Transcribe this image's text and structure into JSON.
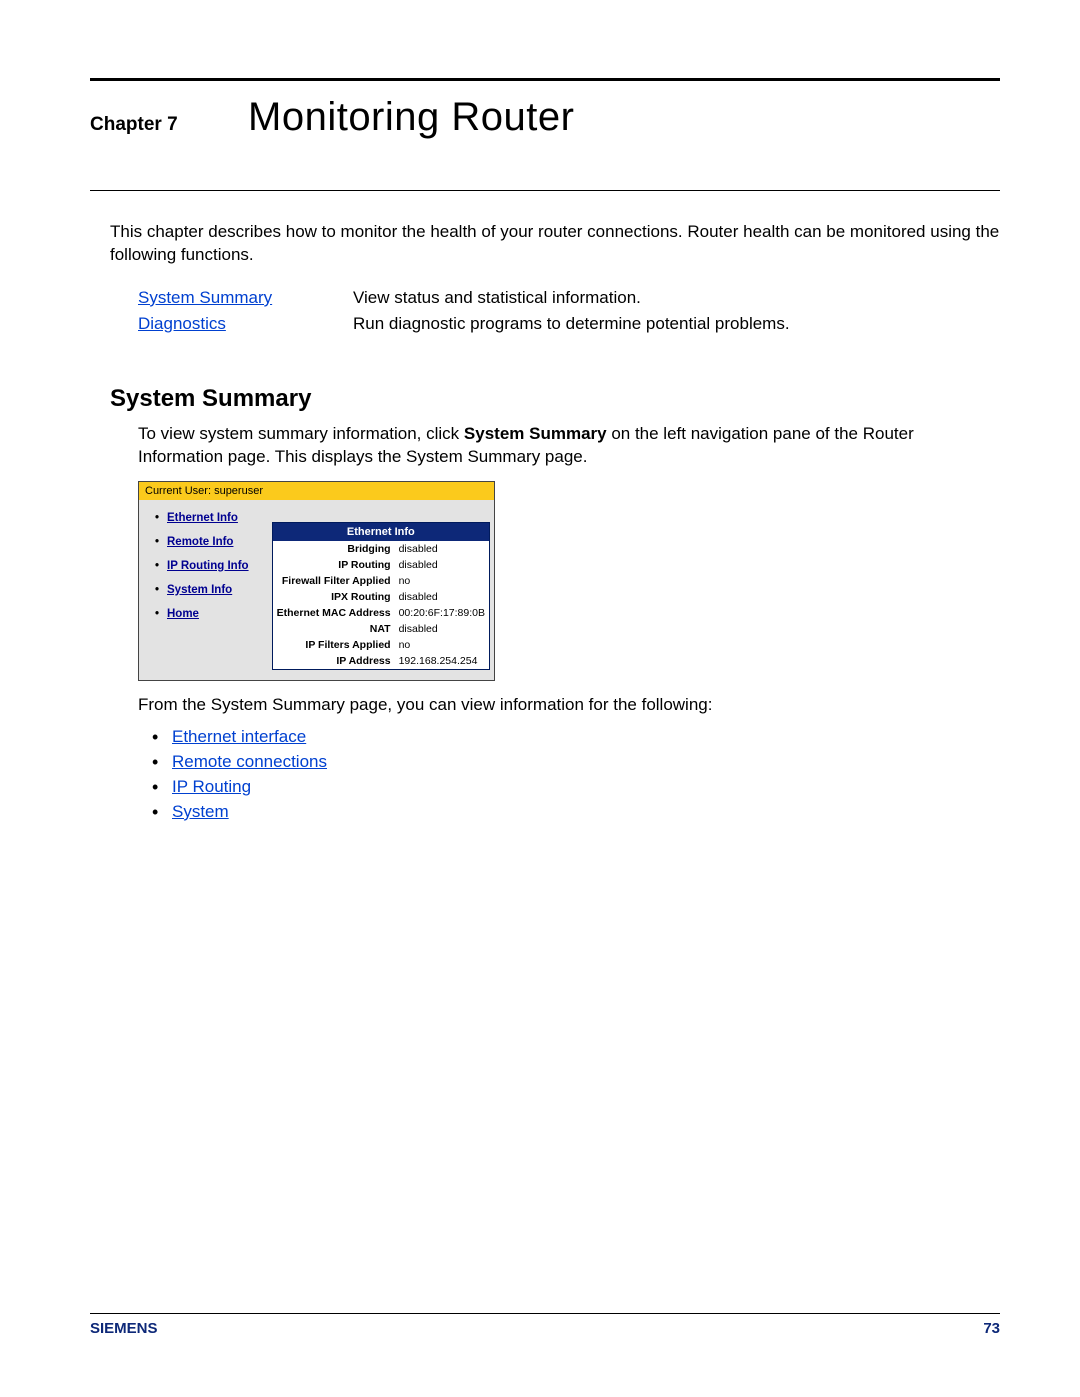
{
  "header": {
    "chapter_label": "Chapter 7",
    "chapter_title": "Monitoring Router"
  },
  "intro_text": "This chapter describes how to monitor the health of your router connections. Router health can be monitored using the following functions.",
  "function_links": [
    {
      "label": "System Summary",
      "desc": "View status and statistical information."
    },
    {
      "label": "Diagnostics",
      "desc": "Run diagnostic programs to determine potential problems."
    }
  ],
  "section": {
    "heading": "System Summary",
    "body_pre": "To view system summary information, click ",
    "body_bold": "System Summary",
    "body_post": " on the left navigation pane of the Router Information page. This displays the System Summary page."
  },
  "screenshot": {
    "current_user_label": "Current User: superuser",
    "nav_items": [
      "Ethernet Info",
      "Remote Info",
      "IP Routing Info",
      "System Info",
      "Home"
    ],
    "panel_title": "Ethernet Info",
    "rows": [
      {
        "k": "Bridging",
        "v": "disabled"
      },
      {
        "k": "IP Routing",
        "v": "disabled"
      },
      {
        "k": "Firewall Filter Applied",
        "v": "no"
      },
      {
        "k": "IPX Routing",
        "v": "disabled"
      },
      {
        "k": "Ethernet MAC Address",
        "v": "00:20:6F:17:89:0B"
      },
      {
        "k": "NAT",
        "v": "disabled"
      },
      {
        "k": "IP Filters Applied",
        "v": "no"
      },
      {
        "k": "IP Address",
        "v": "192.168.254.254"
      }
    ]
  },
  "post_screenshot_text": "From the System Summary page, you can view information for the following:",
  "info_links": [
    "Ethernet interface",
    "Remote connections",
    "IP Routing",
    "System"
  ],
  "footer": {
    "brand": "SIEMENS",
    "page_number": "73"
  },
  "colors": {
    "link": "#0040d0",
    "accent": "#0d2878",
    "yellow": "#fbca1c",
    "gray_bg": "#e3e3e3"
  }
}
